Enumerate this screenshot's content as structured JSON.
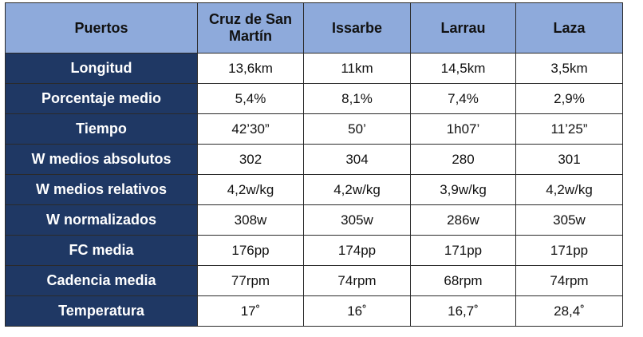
{
  "table": {
    "headers": [
      "Puertos",
      "Cruz de San Martín",
      "Issarbe",
      "Larrau",
      "Laza"
    ],
    "rows": [
      {
        "label": "Longitud",
        "values": [
          "13,6km",
          "11km",
          "14,5km",
          "3,5km"
        ]
      },
      {
        "label": "Porcentaje medio",
        "values": [
          "5,4%",
          "8,1%",
          "7,4%",
          "2,9%"
        ]
      },
      {
        "label": "Tiempo",
        "values": [
          "42’30”",
          "50’",
          "1h07’",
          "11’25”"
        ]
      },
      {
        "label": "W medios absolutos",
        "values": [
          "302",
          "304",
          "280",
          "301"
        ]
      },
      {
        "label": "W medios relativos",
        "values": [
          "4,2w/kg",
          "4,2w/kg",
          "3,9w/kg",
          "4,2w/kg"
        ]
      },
      {
        "label": "W normalizados",
        "values": [
          "308w",
          "305w",
          "286w",
          "305w"
        ]
      },
      {
        "label": "FC media",
        "values": [
          "176pp",
          "174pp",
          "171pp",
          "171pp"
        ]
      },
      {
        "label": "Cadencia media",
        "values": [
          "77rpm",
          "74rpm",
          "68rpm",
          "74rpm"
        ]
      },
      {
        "label": "Temperatura",
        "values": [
          "17˚",
          "16˚",
          "16,7˚",
          "28,4˚"
        ]
      }
    ]
  },
  "colors": {
    "header_bg": "#8eaadb",
    "row_label_bg": "#1f3864",
    "row_label_text": "#ffffff",
    "border": "#2a2a2a"
  }
}
